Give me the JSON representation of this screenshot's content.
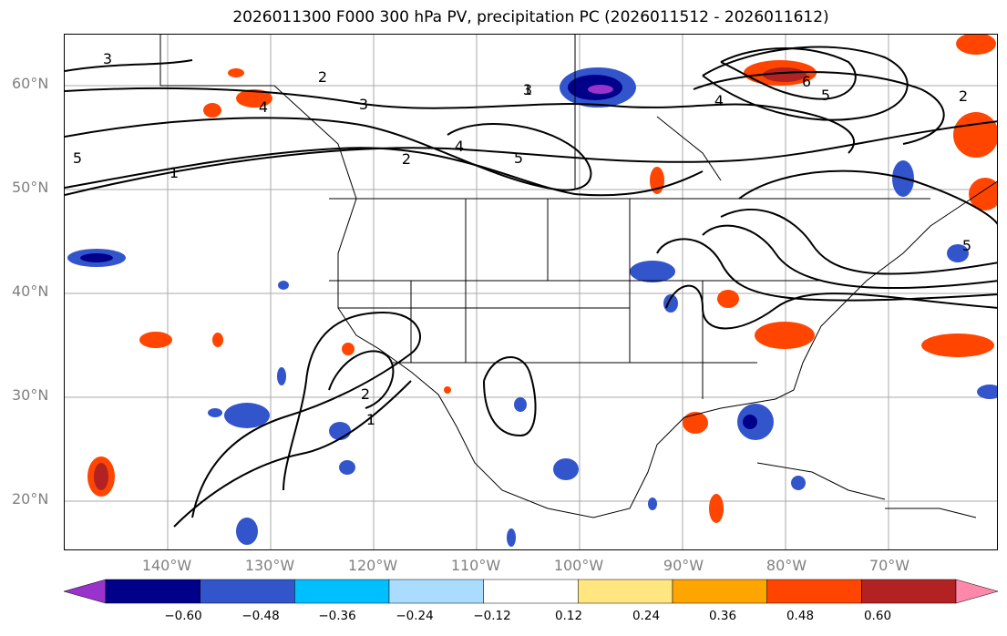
{
  "title": "2026011300 F000 300 hPa PV, precipitation PC (2026011512 - 2026011612)",
  "lat_labels": [
    "60°N",
    "50°N",
    "40°N",
    "30°N",
    "20°N"
  ],
  "lon_labels": [
    "140°W",
    "130°W",
    "120°W",
    "110°W",
    "100°W",
    "90°W",
    "80°W",
    "70°W"
  ],
  "contour_labels": [
    "3",
    "4",
    "2",
    "1",
    "3",
    "4",
    "5",
    "2",
    "5",
    "1",
    "3",
    "4",
    "5",
    "6",
    "2",
    "2",
    "1",
    "5"
  ],
  "colorbar": {
    "ticks": [
      "−0.60",
      "−0.48",
      "−0.36",
      "−0.24",
      "−0.12",
      "0.12",
      "0.24",
      "0.36",
      "0.48",
      "0.60"
    ],
    "colors": [
      "#9933cc",
      "#00008b",
      "#3355cc",
      "#00bfff",
      "#aadcff",
      "#ffffff",
      "#ffe680",
      "#ffa500",
      "#ff4500",
      "#b22222",
      "#ff88aa"
    ]
  },
  "colors": {
    "axis_label": "#808080",
    "contour": "#000000",
    "grid": "#aaaaaa"
  }
}
